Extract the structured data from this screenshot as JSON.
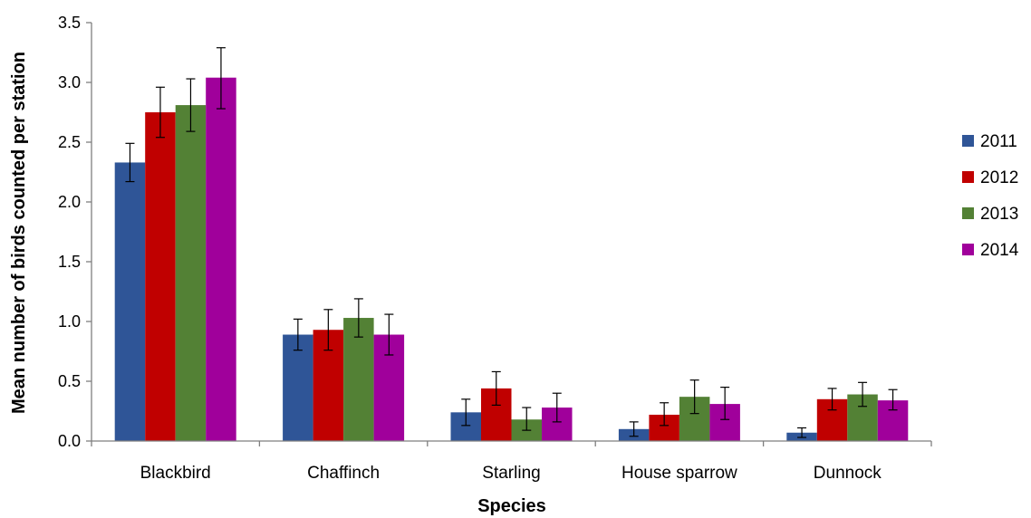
{
  "chart_data": {
    "type": "bar",
    "xlabel": "Species",
    "ylabel": "Mean number of birds counted per station",
    "ylim": [
      0,
      3.5
    ],
    "yticks": [
      "0.0",
      "0.5",
      "1.0",
      "1.5",
      "2.0",
      "2.5",
      "3.0",
      "3.5"
    ],
    "grid": false,
    "legend_position": "right",
    "categories": [
      "Blackbird",
      "Chaffinch",
      "Starling",
      "House sparrow",
      "Dunnock"
    ],
    "series": [
      {
        "name": "2011",
        "color": "#2F5597",
        "values": [
          2.33,
          0.89,
          0.24,
          0.1,
          0.07
        ],
        "error_low": [
          2.17,
          0.76,
          0.13,
          0.04,
          0.03
        ],
        "error_high": [
          2.49,
          1.02,
          0.35,
          0.16,
          0.11
        ]
      },
      {
        "name": "2012",
        "color": "#C00000",
        "values": [
          2.75,
          0.93,
          0.44,
          0.22,
          0.35
        ],
        "error_low": [
          2.54,
          0.76,
          0.3,
          0.13,
          0.26
        ],
        "error_high": [
          2.96,
          1.1,
          0.58,
          0.32,
          0.44
        ]
      },
      {
        "name": "2013",
        "color": "#538135",
        "values": [
          2.81,
          1.03,
          0.18,
          0.37,
          0.39
        ],
        "error_low": [
          2.59,
          0.87,
          0.09,
          0.23,
          0.29
        ],
        "error_high": [
          3.03,
          1.19,
          0.28,
          0.51,
          0.49
        ]
      },
      {
        "name": "2014",
        "color": "#A0009B",
        "values": [
          3.04,
          0.89,
          0.28,
          0.31,
          0.34
        ],
        "error_low": [
          2.78,
          0.72,
          0.16,
          0.18,
          0.26
        ],
        "error_high": [
          3.29,
          1.06,
          0.4,
          0.45,
          0.43
        ]
      }
    ]
  }
}
